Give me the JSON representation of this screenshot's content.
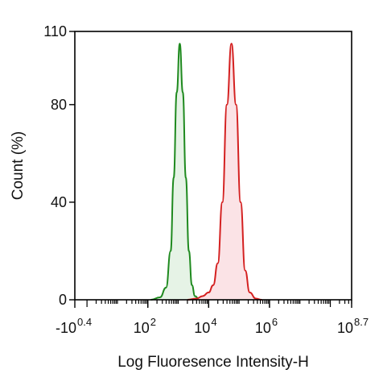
{
  "chart_data": {
    "type": "area",
    "title": "",
    "xlabel": "Log Fluoresence Intensity-H",
    "ylabel": "Count  (%)",
    "x_scale": "log",
    "xlim_log10": [
      -0.4,
      8.7
    ],
    "ylim": [
      0,
      110
    ],
    "y_ticks": [
      {
        "value": 0,
        "label": "0"
      },
      {
        "value": 40,
        "label": "40"
      },
      {
        "value": 80,
        "label": "80"
      },
      {
        "value": 110,
        "label": "110"
      }
    ],
    "x_ticks": [
      {
        "value": -0.4,
        "base": "-10",
        "exp": "0.4"
      },
      {
        "value": 2,
        "base": "10",
        "exp": "2"
      },
      {
        "value": 4,
        "base": "10",
        "exp": "4"
      },
      {
        "value": 6,
        "base": "10",
        "exp": "6"
      },
      {
        "value": 8.7,
        "base": "10",
        "exp": "8.7"
      }
    ],
    "grid": false,
    "legend": "none",
    "series": [
      {
        "color": "#1f8a1f",
        "fill": "#e6f3e6",
        "points": [
          [
            2.1,
            0
          ],
          [
            2.4,
            1
          ],
          [
            2.6,
            5
          ],
          [
            2.75,
            20
          ],
          [
            2.85,
            50
          ],
          [
            2.95,
            85
          ],
          [
            3.05,
            105
          ],
          [
            3.15,
            85
          ],
          [
            3.25,
            50
          ],
          [
            3.35,
            20
          ],
          [
            3.45,
            6
          ],
          [
            3.55,
            1.5
          ],
          [
            3.7,
            0
          ]
        ]
      },
      {
        "color": "#d42020",
        "fill": "#fbe3e6",
        "points": [
          [
            3.3,
            0
          ],
          [
            3.6,
            0.5
          ],
          [
            3.8,
            1.5
          ],
          [
            4.0,
            3
          ],
          [
            4.15,
            6
          ],
          [
            4.3,
            15
          ],
          [
            4.45,
            40
          ],
          [
            4.6,
            80
          ],
          [
            4.75,
            105
          ],
          [
            4.9,
            80
          ],
          [
            5.05,
            40
          ],
          [
            5.2,
            12
          ],
          [
            5.35,
            3
          ],
          [
            5.55,
            0.5
          ],
          [
            5.75,
            0
          ]
        ]
      }
    ]
  }
}
